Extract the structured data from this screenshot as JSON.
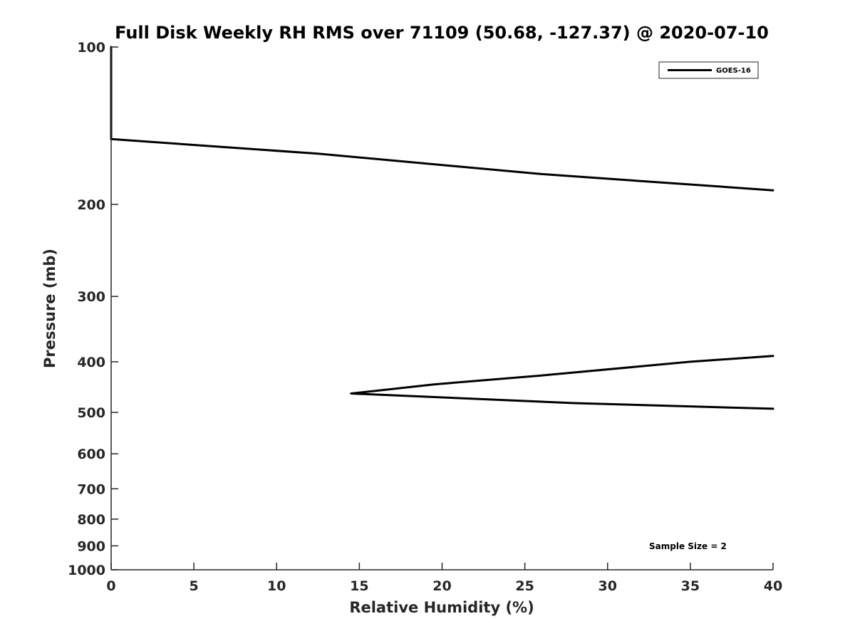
{
  "chart_data": {
    "type": "line",
    "title": "Full Disk Weekly RH RMS over 71109 (50.68, -127.37) @ 2020-07-10",
    "xlabel": "Relative Humidity (%)",
    "ylabel": "Pressure (mb)",
    "xlim": [
      0,
      40
    ],
    "ylim": [
      100,
      1000
    ],
    "y_scale": "log",
    "y_reversed": true,
    "x_ticks": [
      0,
      5,
      10,
      15,
      20,
      25,
      30,
      35,
      40
    ],
    "y_ticks": [
      100,
      200,
      300,
      400,
      500,
      600,
      700,
      800,
      900,
      1000
    ],
    "grid": false,
    "legend_position": "top-right",
    "series": [
      {
        "name": "GOES-16",
        "color": "#000000",
        "segments": [
          [
            {
              "x": 0,
              "y": 100
            },
            {
              "x": 0,
              "y": 125
            },
            {
              "x": 0,
              "y": 150
            },
            {
              "x": 12.5,
              "y": 160
            },
            {
              "x": 26,
              "y": 175
            },
            {
              "x": 40,
              "y": 188
            }
          ],
          [
            {
              "x": 40,
              "y": 390
            },
            {
              "x": 35,
              "y": 400
            },
            {
              "x": 26,
              "y": 425
            },
            {
              "x": 19.5,
              "y": 442
            },
            {
              "x": 14.5,
              "y": 460
            },
            {
              "x": 28,
              "y": 480
            },
            {
              "x": 40,
              "y": 492
            }
          ]
        ]
      }
    ],
    "annotations": [
      "Sample Size = 2"
    ]
  }
}
